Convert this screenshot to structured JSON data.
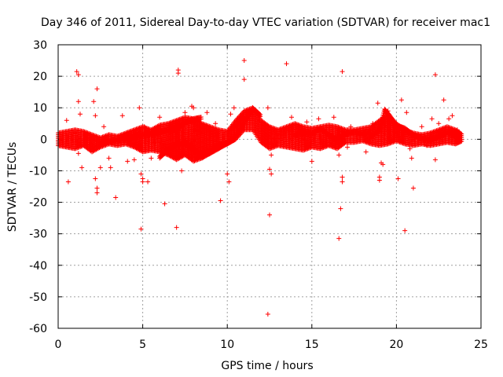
{
  "chart_data": {
    "type": "scatter",
    "title": "Day 346 of 2011, Sidereal Day-to-day VTEC variation (SDTVAR) for receiver mac1",
    "xlabel": "GPS time / hours",
    "ylabel": "SDTVAR / TECUs",
    "xlim": [
      0,
      25
    ],
    "ylim": [
      -60,
      30
    ],
    "xticks": [
      0,
      5,
      10,
      15,
      20,
      25
    ],
    "yticks": [
      -60,
      -50,
      -40,
      -30,
      -20,
      -10,
      0,
      10,
      20,
      30
    ],
    "xtick_labels": [
      "0",
      "5",
      "10",
      "15",
      "20",
      "25"
    ],
    "ytick_labels": [
      "-60",
      "-50",
      "-40",
      "-30",
      "-20",
      "-10",
      "0",
      "10",
      "20",
      "30"
    ],
    "grid": true,
    "marker": "+",
    "color": "#ff0000",
    "series": [
      {
        "name": "SDTVAR",
        "dense_band": [
          [
            0.0,
            2.0,
            -2.0
          ],
          [
            0.5,
            2.5,
            -2.5
          ],
          [
            1.0,
            3.0,
            -3.0
          ],
          [
            1.5,
            2.5,
            -2.0
          ],
          [
            2.0,
            1.5,
            -4.0
          ],
          [
            2.5,
            0.5,
            -2.5
          ],
          [
            3.0,
            1.5,
            -1.5
          ],
          [
            3.5,
            1.0,
            -2.0
          ],
          [
            4.0,
            2.0,
            -1.5
          ],
          [
            4.5,
            3.0,
            -2.5
          ],
          [
            5.0,
            4.0,
            -4.0
          ],
          [
            5.5,
            3.0,
            -3.5
          ],
          [
            6.0,
            4.5,
            -4.0
          ],
          [
            6.5,
            5.0,
            -5.0
          ],
          [
            7.0,
            6.0,
            -6.5
          ],
          [
            7.5,
            7.0,
            -5.0
          ],
          [
            8.0,
            6.5,
            -7.0
          ],
          [
            8.5,
            5.0,
            -6.0
          ],
          [
            9.0,
            4.0,
            -4.5
          ],
          [
            9.5,
            3.0,
            -2.0
          ],
          [
            10.0,
            2.5,
            -1.5
          ],
          [
            10.5,
            6.0,
            0.0
          ],
          [
            11.0,
            9.0,
            3.0
          ],
          [
            11.5,
            10.0,
            3.0
          ],
          [
            12.0,
            6.0,
            -1.0
          ],
          [
            12.5,
            4.0,
            -3.0
          ],
          [
            13.0,
            3.0,
            -2.0
          ],
          [
            13.5,
            4.0,
            -2.5
          ],
          [
            14.0,
            5.0,
            -3.0
          ],
          [
            14.5,
            4.0,
            -3.5
          ],
          [
            15.0,
            3.5,
            -2.5
          ],
          [
            15.5,
            4.0,
            -3.0
          ],
          [
            16.0,
            4.5,
            -2.0
          ],
          [
            16.5,
            4.0,
            -3.0
          ],
          [
            17.0,
            3.0,
            -1.0
          ],
          [
            17.5,
            3.0,
            -1.0
          ],
          [
            18.0,
            3.5,
            -0.5
          ],
          [
            18.5,
            4.0,
            -1.5
          ],
          [
            19.0,
            6.0,
            -2.0
          ],
          [
            19.5,
            8.0,
            -1.5
          ],
          [
            20.0,
            5.0,
            -0.5
          ],
          [
            20.5,
            3.0,
            -1.5
          ],
          [
            21.0,
            2.0,
            -2.0
          ],
          [
            21.5,
            1.5,
            -1.5
          ],
          [
            22.0,
            2.0,
            -2.0
          ],
          [
            22.5,
            3.0,
            -1.5
          ],
          [
            23.0,
            4.0,
            -1.0
          ],
          [
            23.5,
            3.0,
            -1.5
          ],
          [
            23.9,
            1.5,
            -0.5
          ]
        ],
        "trend_arcs": [
          [
            [
              2.5,
              -1.5
            ],
            [
              3.0,
              -1.0
            ],
            [
              3.5,
              -0.5
            ],
            [
              4.0,
              0.0
            ],
            [
              4.5,
              0.5
            ],
            [
              5.0,
              1.0
            ],
            [
              5.5,
              1.5
            ],
            [
              6.0,
              2.0
            ],
            [
              6.5,
              2.5
            ],
            [
              7.0,
              3.0
            ],
            [
              7.5,
              5.0
            ],
            [
              8.0,
              6.0
            ],
            [
              8.5,
              6.5
            ]
          ],
          [
            [
              7.5,
              -1.0
            ],
            [
              8.0,
              -3.5
            ],
            [
              8.5,
              -5.5
            ],
            [
              9.0,
              -4.5
            ],
            [
              9.5,
              -3.0
            ],
            [
              10.0,
              -1.5
            ],
            [
              10.5,
              0.5
            ],
            [
              11.0,
              5.0
            ],
            [
              11.5,
              9.5
            ],
            [
              12.0,
              7.0
            ]
          ],
          [
            [
              6.0,
              -6.0
            ],
            [
              6.5,
              -3.5
            ],
            [
              7.0,
              -2.0
            ],
            [
              7.5,
              -1.5
            ],
            [
              8.0,
              -3.0
            ],
            [
              8.5,
              -6.0
            ],
            [
              9.0,
              -4.0
            ],
            [
              9.5,
              -2.0
            ],
            [
              10.0,
              -1.5
            ],
            [
              10.5,
              0.0
            ]
          ],
          [
            [
              18.5,
              0.5
            ],
            [
              19.0,
              2.5
            ],
            [
              19.3,
              9.0
            ],
            [
              19.6,
              7.0
            ],
            [
              20.0,
              4.0
            ],
            [
              20.5,
              3.0
            ],
            [
              21.0,
              1.0
            ],
            [
              21.5,
              0.0
            ],
            [
              22.0,
              -0.5
            ],
            [
              22.5,
              0.5
            ],
            [
              23.0,
              2.0
            ],
            [
              23.5,
              1.0
            ]
          ],
          [
            [
              14.0,
              1.0
            ],
            [
              14.5,
              2.0
            ],
            [
              15.0,
              1.5
            ],
            [
              15.5,
              3.0
            ],
            [
              16.0,
              1.0
            ],
            [
              16.5,
              -0.5
            ],
            [
              17.0,
              1.5
            ],
            [
              17.5,
              2.0
            ],
            [
              18.0,
              1.5
            ],
            [
              18.5,
              2.0
            ]
          ]
        ],
        "points": [
          [
            0.5,
            6.0
          ],
          [
            0.6,
            -13.5
          ],
          [
            1.0,
            2.0
          ],
          [
            1.1,
            21.5
          ],
          [
            1.2,
            20.5
          ],
          [
            1.2,
            12.0
          ],
          [
            1.3,
            8.0
          ],
          [
            1.2,
            -4.5
          ],
          [
            1.4,
            -9.0
          ],
          [
            2.1,
            12.0
          ],
          [
            2.2,
            7.5
          ],
          [
            2.3,
            16.0
          ],
          [
            2.2,
            -12.5
          ],
          [
            2.3,
            -15.5
          ],
          [
            2.3,
            -17.0
          ],
          [
            2.5,
            -9.0
          ],
          [
            2.7,
            4.0
          ],
          [
            3.0,
            -6.0
          ],
          [
            3.1,
            -9.0
          ],
          [
            3.4,
            -18.5
          ],
          [
            3.8,
            7.5
          ],
          [
            4.1,
            -7.0
          ],
          [
            4.5,
            -6.5
          ],
          [
            4.8,
            10.0
          ],
          [
            4.9,
            -11.0
          ],
          [
            5.0,
            -12.5
          ],
          [
            5.0,
            -13.5
          ],
          [
            4.9,
            -28.5
          ],
          [
            5.1,
            4.0
          ],
          [
            5.3,
            -13.5
          ],
          [
            5.5,
            -6.0
          ],
          [
            5.7,
            -1.0
          ],
          [
            6.0,
            7.0
          ],
          [
            6.3,
            -20.5
          ],
          [
            6.7,
            -3.5
          ],
          [
            7.0,
            -28.0
          ],
          [
            7.1,
            22.0
          ],
          [
            7.1,
            21.0
          ],
          [
            7.3,
            -10.0
          ],
          [
            7.5,
            8.5
          ],
          [
            7.9,
            10.5
          ],
          [
            8.0,
            10.0
          ],
          [
            8.8,
            8.5
          ],
          [
            9.3,
            5.0
          ],
          [
            9.6,
            -19.5
          ],
          [
            10.0,
            -11.0
          ],
          [
            10.1,
            -13.5
          ],
          [
            10.2,
            8.0
          ],
          [
            10.4,
            10.0
          ],
          [
            11.0,
            25.0
          ],
          [
            11.0,
            19.0
          ],
          [
            11.3,
            8.5
          ],
          [
            11.9,
            6.0
          ],
          [
            12.3,
            4.5
          ],
          [
            12.4,
            10.0
          ],
          [
            12.4,
            -55.5
          ],
          [
            12.5,
            -24.0
          ],
          [
            12.5,
            -9.5
          ],
          [
            12.6,
            -11.0
          ],
          [
            12.6,
            -5.0
          ],
          [
            13.5,
            24.0
          ],
          [
            13.8,
            7.0
          ],
          [
            14.7,
            5.5
          ],
          [
            15.0,
            -7.0
          ],
          [
            15.4,
            6.5
          ],
          [
            16.3,
            7.0
          ],
          [
            16.6,
            -5.0
          ],
          [
            16.6,
            -31.5
          ],
          [
            16.7,
            -22.0
          ],
          [
            16.8,
            21.5
          ],
          [
            16.8,
            -12.0
          ],
          [
            16.8,
            -13.5
          ],
          [
            17.1,
            -2.5
          ],
          [
            17.3,
            4.0
          ],
          [
            18.2,
            -4.0
          ],
          [
            18.6,
            5.0
          ],
          [
            18.9,
            11.5
          ],
          [
            19.0,
            -12.0
          ],
          [
            19.0,
            -13.0
          ],
          [
            19.1,
            -7.5
          ],
          [
            19.2,
            -8.0
          ],
          [
            19.5,
            9.0
          ],
          [
            19.8,
            5.0
          ],
          [
            20.1,
            -12.5
          ],
          [
            20.3,
            12.5
          ],
          [
            20.5,
            -29.0
          ],
          [
            20.6,
            8.5
          ],
          [
            20.8,
            -3.0
          ],
          [
            20.9,
            -6.0
          ],
          [
            21.0,
            -15.5
          ],
          [
            21.5,
            4.0
          ],
          [
            21.8,
            -2.0
          ],
          [
            22.1,
            6.5
          ],
          [
            22.3,
            -6.5
          ],
          [
            22.3,
            20.5
          ],
          [
            22.5,
            5.0
          ],
          [
            22.8,
            12.5
          ],
          [
            23.1,
            6.5
          ],
          [
            23.3,
            7.5
          ],
          [
            23.6,
            3.0
          ]
        ]
      }
    ]
  }
}
